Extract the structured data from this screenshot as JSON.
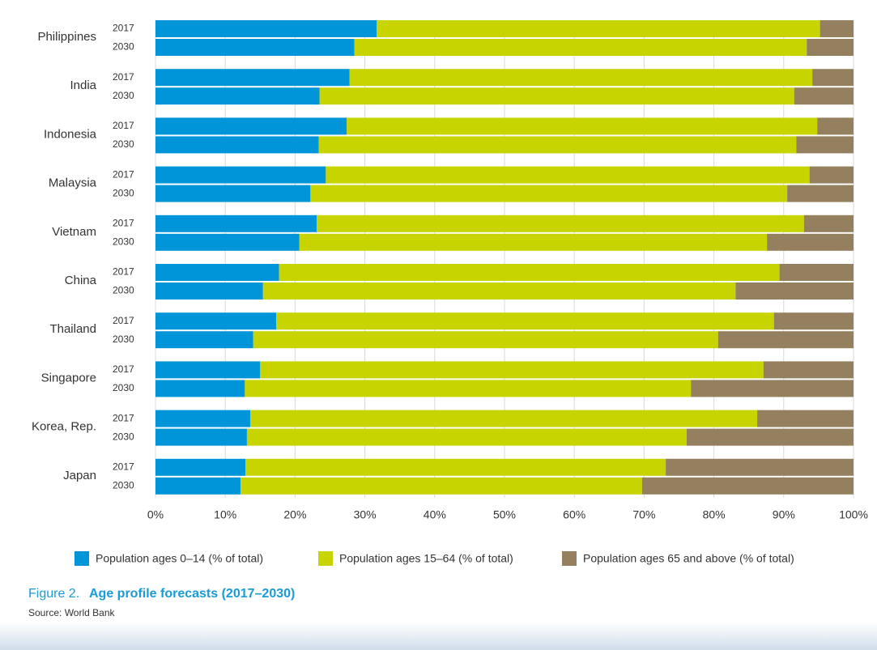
{
  "chart_data": {
    "type": "stacked-bar-horizontal",
    "groups": [
      "Philippines",
      "India",
      "Indonesia",
      "Malaysia",
      "Vietnam",
      "China",
      "Thailand",
      "Singapore",
      "Korea, Rep.",
      "Japan"
    ],
    "categories": [
      "2017",
      "2030",
      "2017",
      "2030",
      "2017",
      "2030",
      "2017",
      "2030",
      "2017",
      "2030",
      "2017",
      "2030",
      "2017",
      "2030",
      "2017",
      "2030",
      "2017",
      "2030",
      "2017",
      "2030"
    ],
    "series": [
      {
        "name": "Population ages 0–14 (% of total)",
        "color": "#0095d9",
        "values": [
          31.7,
          28.5,
          27.8,
          23.5,
          27.4,
          23.4,
          24.4,
          22.2,
          23.1,
          20.6,
          17.7,
          15.4,
          17.3,
          14.0,
          15.0,
          12.8,
          13.6,
          13.1,
          12.9,
          12.2
        ]
      },
      {
        "name": "Population ages 15–64 (% of total)",
        "color": "#c8d400",
        "values": [
          63.5,
          64.8,
          66.3,
          68.0,
          67.4,
          68.4,
          69.3,
          68.3,
          69.8,
          67.0,
          71.7,
          67.7,
          71.3,
          66.6,
          72.1,
          63.9,
          72.6,
          63.0,
          60.2,
          57.5
        ]
      },
      {
        "name": "Population ages 65 and above (% of total)",
        "color": "#94805f",
        "values": [
          4.8,
          6.7,
          5.9,
          8.5,
          5.2,
          8.2,
          6.3,
          9.5,
          7.1,
          12.4,
          10.6,
          16.9,
          11.4,
          19.4,
          12.9,
          23.3,
          13.8,
          23.9,
          26.9,
          30.3
        ]
      }
    ],
    "xlim": [
      0,
      100
    ],
    "xticks": [
      {
        "value": 0,
        "label": "0%"
      },
      {
        "value": 10,
        "label": "10%"
      },
      {
        "value": 20,
        "label": "20%"
      },
      {
        "value": 30,
        "label": "30%"
      },
      {
        "value": 40,
        "label": "40%"
      },
      {
        "value": 50,
        "label": "50%"
      },
      {
        "value": 60,
        "label": "60%"
      },
      {
        "value": 70,
        "label": "70%"
      },
      {
        "value": 80,
        "label": "80%"
      },
      {
        "value": 90,
        "label": "90%"
      },
      {
        "value": 100,
        "label": "100%"
      }
    ],
    "grid": true,
    "figure_label": "Figure 2.",
    "title": "Age profile forecasts (2017–2030)",
    "source": "Source: World Bank"
  }
}
